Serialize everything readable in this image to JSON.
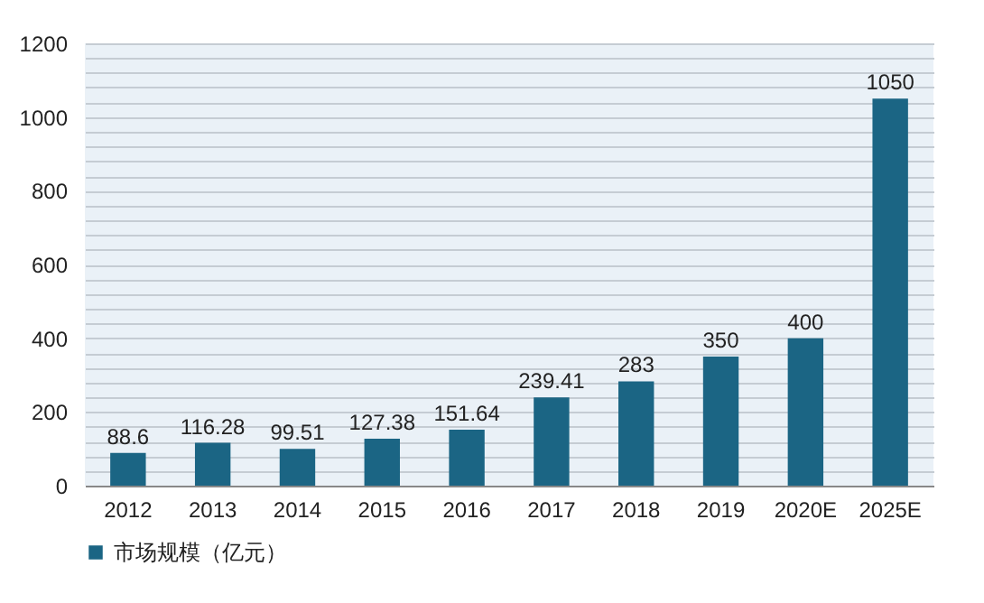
{
  "chart_data": {
    "type": "bar",
    "categories": [
      "2012",
      "2013",
      "2014",
      "2015",
      "2016",
      "2017",
      "2018",
      "2019",
      "2020E",
      "2025E"
    ],
    "series": [
      {
        "name": "市场规模（亿元）",
        "color": "#1b6584",
        "values": [
          88.6,
          116.28,
          99.51,
          127.38,
          151.64,
          239.41,
          283,
          350,
          400,
          1050
        ]
      }
    ],
    "ylim": [
      0,
      1200
    ],
    "yticks": [
      0,
      {
        "value": 40,
        "label": null
      },
      {
        "value": 80,
        "label": null
      },
      {
        "value": 120,
        "label": null
      },
      {
        "value": 160,
        "label": null
      },
      200,
      {
        "value": 240,
        "label": null
      },
      {
        "value": 280,
        "label": null
      },
      {
        "value": 320,
        "label": null
      },
      {
        "value": 360,
        "label": null
      },
      400,
      {
        "value": 440,
        "label": null
      },
      {
        "value": 480,
        "label": null
      },
      {
        "value": 520,
        "label": null
      },
      {
        "value": 560,
        "label": null
      },
      600,
      {
        "value": 640,
        "label": null
      },
      {
        "value": 680,
        "label": null
      },
      {
        "value": 720,
        "label": null
      },
      {
        "value": 760,
        "label": null
      },
      800,
      {
        "value": 840,
        "label": null
      },
      {
        "value": 880,
        "label": null
      },
      {
        "value": 920,
        "label": null
      },
      {
        "value": 960,
        "label": null
      },
      1000,
      {
        "value": 1040,
        "label": null
      },
      {
        "value": 1080,
        "label": null
      },
      {
        "value": 1120,
        "label": null
      },
      {
        "value": 1160,
        "label": null
      },
      1200
    ],
    "grid": "y",
    "data_labels": true,
    "legend": "bottom left"
  }
}
